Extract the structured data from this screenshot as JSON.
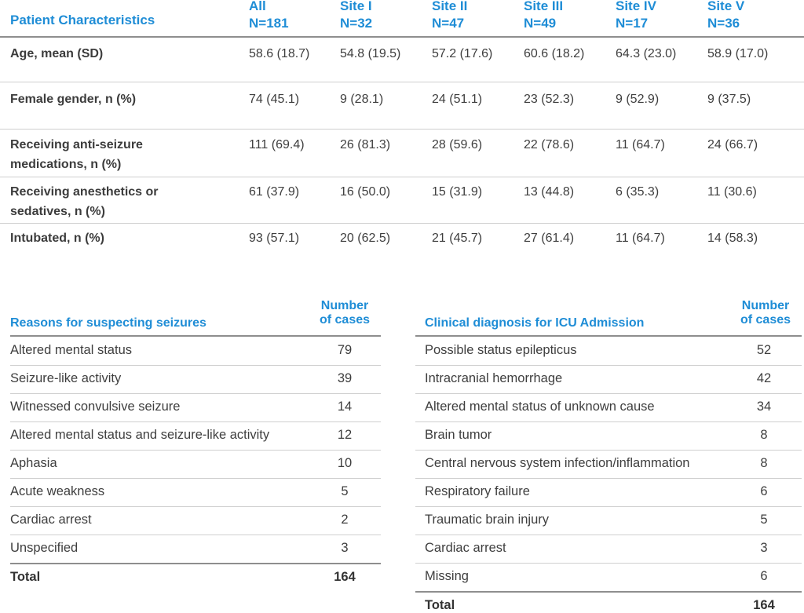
{
  "patient_table": {
    "header_title": "Patient Characteristics",
    "columns": [
      {
        "name": "All",
        "n": "N=181"
      },
      {
        "name": "Site I",
        "n": "N=32"
      },
      {
        "name": "Site II",
        "n": "N=47"
      },
      {
        "name": "Site III",
        "n": "N=49"
      },
      {
        "name": "Site IV",
        "n": "N=17"
      },
      {
        "name": "Site V",
        "n": "N=36"
      }
    ],
    "rows": [
      {
        "label": "Age, mean (SD)",
        "values": [
          "58.6 (18.7)",
          "54.8 (19.5)",
          "57.2 (17.6)",
          "60.6 (18.2)",
          "64.3 (23.0)",
          "58.9 (17.0)"
        ]
      },
      {
        "label": "Female gender, n (%)",
        "values": [
          "74 (45.1)",
          "9 (28.1)",
          "24 (51.1)",
          "23 (52.3)",
          "9 (52.9)",
          "9 (37.5)"
        ]
      },
      {
        "label": "Receiving anti-seizure medications, n (%)",
        "values": [
          "111 (69.4)",
          "26 (81.3)",
          "28 (59.6)",
          "22 (78.6)",
          "11 (64.7)",
          "24 (66.7)"
        ]
      },
      {
        "label": "Receiving anesthetics or sedatives, n (%)",
        "values": [
          "61 (37.9)",
          "16 (50.0)",
          "15 (31.9)",
          "13 (44.8)",
          "6 (35.3)",
          "11 (30.6)"
        ]
      },
      {
        "label": "Intubated, n (%)",
        "values": [
          "93 (57.1)",
          "20 (62.5)",
          "21 (45.7)",
          "27 (61.4)",
          "11 (64.7)",
          "14 (58.3)"
        ]
      }
    ]
  },
  "reasons_table": {
    "header_title": "Reasons for suspecting seizures",
    "header_num_line1": "Number",
    "header_num_line2": "of cases",
    "rows": [
      {
        "name": "Altered mental status",
        "value": "79"
      },
      {
        "name": "Seizure-like activity",
        "value": "39"
      },
      {
        "name": "Witnessed convulsive seizure",
        "value": "14"
      },
      {
        "name": "Altered mental status and seizure-like activity",
        "value": "12"
      },
      {
        "name": "Aphasia",
        "value": "10"
      },
      {
        "name": "Acute weakness",
        "value": "5"
      },
      {
        "name": "Cardiac arrest",
        "value": "2"
      },
      {
        "name": "Unspecified",
        "value": "3"
      }
    ],
    "total_label": "Total",
    "total_value": "164"
  },
  "diagnosis_table": {
    "header_title": "Clinical diagnosis for ICU Admission",
    "header_num_line1": "Number",
    "header_num_line2": "of cases",
    "rows": [
      {
        "name": "Possible status epilepticus",
        "value": "52"
      },
      {
        "name": "Intracranial hemorrhage",
        "value": "42"
      },
      {
        "name": "Altered mental status of unknown cause",
        "value": "34"
      },
      {
        "name": "Brain tumor",
        "value": "8"
      },
      {
        "name": "Central nervous system infection/inflammation",
        "value": "8"
      },
      {
        "name": "Respiratory failure",
        "value": "6"
      },
      {
        "name": "Traumatic brain injury",
        "value": "5"
      },
      {
        "name": "Cardiac arrest",
        "value": "3"
      },
      {
        "name": "Missing",
        "value": "6"
      }
    ],
    "total_label": "Total",
    "total_value": "164"
  },
  "colors": {
    "accent": "#1f8dd6",
    "text": "#3a3a3a",
    "rule": "#cfcfcf",
    "rule_strong": "#8e8e8e"
  }
}
